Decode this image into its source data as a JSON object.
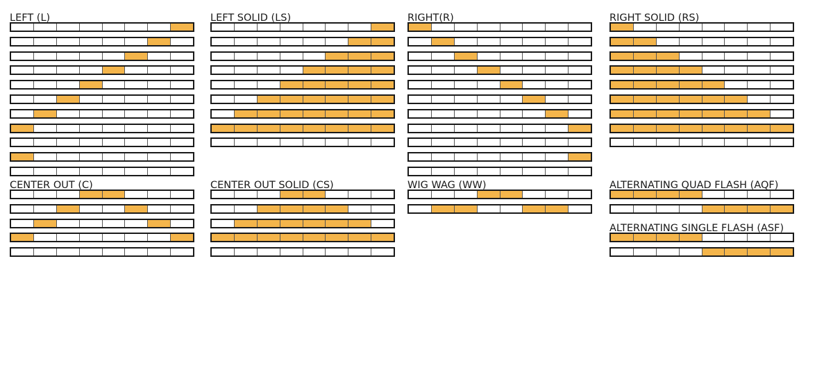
{
  "on_color": "#f4b54b",
  "off_color": "#ffffff",
  "outline_color": "#1a1a1a",
  "segments_per_bar": 8,
  "patterns": [
    {
      "id": "L",
      "title": "LEFT (L)",
      "rows": [
        [
          0,
          0,
          0,
          0,
          0,
          0,
          0,
          1
        ],
        [
          0,
          0,
          0,
          0,
          0,
          0,
          1,
          0
        ],
        [
          0,
          0,
          0,
          0,
          0,
          1,
          0,
          0
        ],
        [
          0,
          0,
          0,
          0,
          1,
          0,
          0,
          0
        ],
        [
          0,
          0,
          0,
          1,
          0,
          0,
          0,
          0
        ],
        [
          0,
          0,
          1,
          0,
          0,
          0,
          0,
          0
        ],
        [
          0,
          1,
          0,
          0,
          0,
          0,
          0,
          0
        ],
        [
          1,
          0,
          0,
          0,
          0,
          0,
          0,
          0
        ],
        [
          0,
          0,
          0,
          0,
          0,
          0,
          0,
          0
        ],
        [
          1,
          0,
          0,
          0,
          0,
          0,
          0,
          0
        ],
        [
          0,
          0,
          0,
          0,
          0,
          0,
          0,
          0
        ]
      ]
    },
    {
      "id": "LS",
      "title": "LEFT SOLID (LS)",
      "rows": [
        [
          0,
          0,
          0,
          0,
          0,
          0,
          0,
          1
        ],
        [
          0,
          0,
          0,
          0,
          0,
          0,
          1,
          1
        ],
        [
          0,
          0,
          0,
          0,
          0,
          1,
          1,
          1
        ],
        [
          0,
          0,
          0,
          0,
          1,
          1,
          1,
          1
        ],
        [
          0,
          0,
          0,
          1,
          1,
          1,
          1,
          1
        ],
        [
          0,
          0,
          1,
          1,
          1,
          1,
          1,
          1
        ],
        [
          0,
          1,
          1,
          1,
          1,
          1,
          1,
          1
        ],
        [
          1,
          1,
          1,
          1,
          1,
          1,
          1,
          1
        ],
        [
          0,
          0,
          0,
          0,
          0,
          0,
          0,
          0
        ]
      ]
    },
    {
      "id": "R",
      "title": "RIGHT(R)",
      "rows": [
        [
          1,
          0,
          0,
          0,
          0,
          0,
          0,
          0
        ],
        [
          0,
          1,
          0,
          0,
          0,
          0,
          0,
          0
        ],
        [
          0,
          0,
          1,
          0,
          0,
          0,
          0,
          0
        ],
        [
          0,
          0,
          0,
          1,
          0,
          0,
          0,
          0
        ],
        [
          0,
          0,
          0,
          0,
          1,
          0,
          0,
          0
        ],
        [
          0,
          0,
          0,
          0,
          0,
          1,
          0,
          0
        ],
        [
          0,
          0,
          0,
          0,
          0,
          0,
          1,
          0
        ],
        [
          0,
          0,
          0,
          0,
          0,
          0,
          0,
          1
        ],
        [
          0,
          0,
          0,
          0,
          0,
          0,
          0,
          0
        ],
        [
          0,
          0,
          0,
          0,
          0,
          0,
          0,
          1
        ],
        [
          0,
          0,
          0,
          0,
          0,
          0,
          0,
          0
        ]
      ]
    },
    {
      "id": "RS",
      "title": "RIGHT SOLID (RS)",
      "rows": [
        [
          1,
          0,
          0,
          0,
          0,
          0,
          0,
          0
        ],
        [
          1,
          1,
          0,
          0,
          0,
          0,
          0,
          0
        ],
        [
          1,
          1,
          1,
          0,
          0,
          0,
          0,
          0
        ],
        [
          1,
          1,
          1,
          1,
          0,
          0,
          0,
          0
        ],
        [
          1,
          1,
          1,
          1,
          1,
          0,
          0,
          0
        ],
        [
          1,
          1,
          1,
          1,
          1,
          1,
          0,
          0
        ],
        [
          1,
          1,
          1,
          1,
          1,
          1,
          1,
          0
        ],
        [
          1,
          1,
          1,
          1,
          1,
          1,
          1,
          1
        ],
        [
          0,
          0,
          0,
          0,
          0,
          0,
          0,
          0
        ]
      ]
    },
    {
      "id": "C",
      "title": "CENTER OUT (C)",
      "rows": [
        [
          0,
          0,
          0,
          1,
          1,
          0,
          0,
          0
        ],
        [
          0,
          0,
          1,
          0,
          0,
          1,
          0,
          0
        ],
        [
          0,
          1,
          0,
          0,
          0,
          0,
          1,
          0
        ],
        [
          1,
          0,
          0,
          0,
          0,
          0,
          0,
          1
        ],
        [
          0,
          0,
          0,
          0,
          0,
          0,
          0,
          0
        ]
      ]
    },
    {
      "id": "CS",
      "title": "CENTER OUT SOLID (CS)",
      "rows": [
        [
          0,
          0,
          0,
          1,
          1,
          0,
          0,
          0
        ],
        [
          0,
          0,
          1,
          1,
          1,
          1,
          0,
          0
        ],
        [
          0,
          1,
          1,
          1,
          1,
          1,
          1,
          0
        ],
        [
          1,
          1,
          1,
          1,
          1,
          1,
          1,
          1
        ],
        [
          0,
          0,
          0,
          0,
          0,
          0,
          0,
          0
        ]
      ]
    },
    {
      "id": "WW",
      "title": "WIG WAG (WW)",
      "rows": [
        [
          0,
          0,
          0,
          1,
          1,
          0,
          0,
          0
        ],
        [
          0,
          1,
          1,
          0,
          0,
          1,
          1,
          0
        ]
      ]
    },
    {
      "id": "AQF",
      "title": "ALTERNATING QUAD FLASH (AQF)",
      "rows": [
        [
          1,
          1,
          1,
          1,
          0,
          0,
          0,
          0
        ],
        [
          0,
          0,
          0,
          0,
          1,
          1,
          1,
          1
        ]
      ]
    },
    {
      "id": "ASF",
      "title": "ALTERNATING SINGLE FLASH (ASF)",
      "rows": [
        [
          1,
          1,
          1,
          1,
          0,
          0,
          0,
          0
        ],
        [
          0,
          0,
          0,
          0,
          1,
          1,
          1,
          1
        ]
      ]
    }
  ]
}
